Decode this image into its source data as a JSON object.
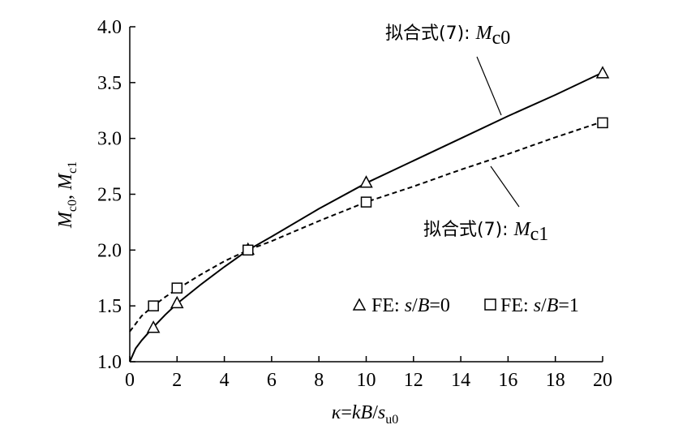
{
  "chart_data": {
    "type": "line",
    "xlabel": "κ=kB/s_u0",
    "ylabel": "M_c0, M_c1",
    "xlim": [
      0,
      20
    ],
    "ylim": [
      1.0,
      4.0
    ],
    "x_ticks": [
      "0",
      "2",
      "4",
      "6",
      "8",
      "10",
      "12",
      "14",
      "16",
      "18",
      "20"
    ],
    "y_ticks": [
      "1.0",
      "1.5",
      "2.0",
      "2.5",
      "3.0",
      "3.5",
      "4.0"
    ],
    "grid": false,
    "legend_position": "bottom-right",
    "series": [
      {
        "name": "拟合式(7): Mc0",
        "style": "solid",
        "color": "#000000",
        "x": [
          0,
          0.25,
          0.5,
          1,
          1.5,
          2,
          3,
          4,
          5,
          6,
          8,
          10,
          12,
          14,
          16,
          18,
          20
        ],
        "y": [
          1.0,
          1.12,
          1.19,
          1.31,
          1.42,
          1.52,
          1.69,
          1.85,
          2.0,
          2.12,
          2.37,
          2.6,
          2.8,
          3.0,
          3.2,
          3.39,
          3.59
        ]
      },
      {
        "name": "拟合式(7): Mc1",
        "style": "dashed",
        "color": "#000000",
        "x": [
          0,
          0.5,
          1,
          1.5,
          2,
          3,
          4,
          5,
          6,
          8,
          10,
          12,
          14,
          16,
          18,
          20
        ],
        "y": [
          1.27,
          1.41,
          1.5,
          1.58,
          1.65,
          1.78,
          1.9,
          2.0,
          2.08,
          2.26,
          2.43,
          2.57,
          2.72,
          2.86,
          3.01,
          3.15
        ]
      },
      {
        "name": "FE: s/B=0",
        "marker": "triangle",
        "x": [
          1,
          2,
          5,
          10,
          20
        ],
        "y": [
          1.3,
          1.52,
          2.0,
          2.6,
          3.58
        ]
      },
      {
        "name": "FE: s/B=1",
        "marker": "square",
        "x": [
          1,
          2,
          5,
          10,
          20
        ],
        "y": [
          1.5,
          1.66,
          2.0,
          2.43,
          3.14
        ]
      }
    ],
    "annotations": [
      {
        "prefix": "拟合式(7): ",
        "var": "M",
        "sub": "c0"
      },
      {
        "prefix": "拟合式(7): ",
        "var": "M",
        "sub": "c1"
      }
    ],
    "legend_entries": [
      {
        "prefix": "FE: ",
        "var": "s",
        "mid": "/",
        "var2": "B",
        "suffix": "=0"
      },
      {
        "prefix": "FE: ",
        "var": "s",
        "mid": "/",
        "var2": "B",
        "suffix": "=1"
      }
    ]
  }
}
